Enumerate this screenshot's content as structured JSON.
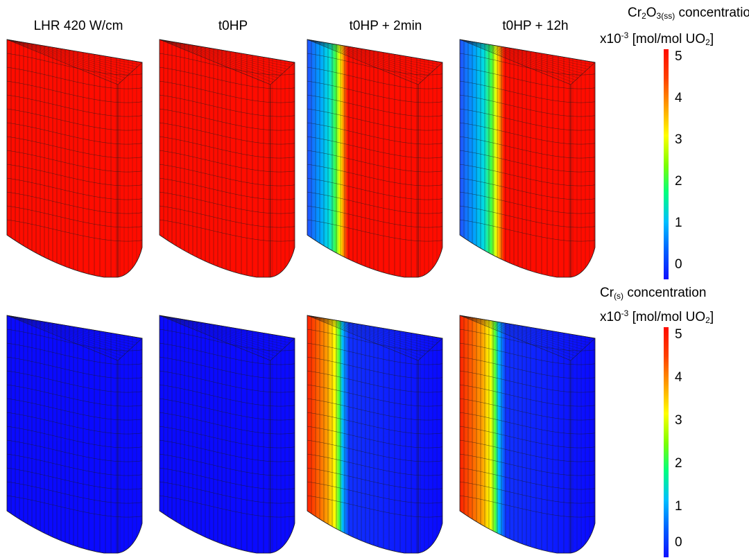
{
  "column_titles": [
    "LHR 420 W/cm",
    "t0HP",
    "t0HP + 2min",
    "t0HP + 12h"
  ],
  "colorbars": [
    {
      "title_line1": {
        "a": "Cr",
        "a_sub": "2",
        "b": "O",
        "b_sub": "3(ss)",
        "c": " concentration"
      },
      "title_line2": {
        "a": "x10",
        "a_sup": "-3",
        "b": " [mol/mol UO",
        "b_sub": "2",
        "c": "]"
      },
      "ticks": [
        "5",
        "4",
        "3",
        "2",
        "1",
        "0"
      ]
    },
    {
      "title_line1": {
        "a": "Cr",
        "a_sub": "(s)",
        "b": " concentration"
      },
      "title_line2": {
        "a": "x10",
        "a_sup": "-3",
        "b": " [mol/mol UO",
        "b_sub": "2",
        "c": "]"
      },
      "ticks": [
        "5",
        "4",
        "3",
        "2",
        "1",
        "0"
      ]
    }
  ],
  "colors": {
    "blue": "#0a0aff",
    "red": "#ff0c00",
    "mesh_line": "#1a1a1a",
    "scale": [
      "#1010ff",
      "#0060ff",
      "#00c0ff",
      "#00ff80",
      "#80ff00",
      "#ffff00",
      "#ffa000",
      "#ff4000",
      "#ff0c00"
    ]
  },
  "panels": [
    {
      "row": "top",
      "col": 0,
      "mode": "uniform",
      "fill": "red"
    },
    {
      "row": "top",
      "col": 1,
      "mode": "uniform",
      "fill": "red"
    },
    {
      "row": "top",
      "col": 2,
      "mode": "depleted",
      "front": 0.27
    },
    {
      "row": "top",
      "col": 3,
      "mode": "depleted",
      "front": 0.3
    },
    {
      "row": "bottom",
      "col": 0,
      "mode": "uniform",
      "fill": "blue"
    },
    {
      "row": "bottom",
      "col": 1,
      "mode": "uniform",
      "fill": "blue"
    },
    {
      "row": "bottom",
      "col": 2,
      "mode": "enriched",
      "front": 0.27
    },
    {
      "row": "bottom",
      "col": 3,
      "mode": "enriched",
      "front": 0.3
    }
  ]
}
